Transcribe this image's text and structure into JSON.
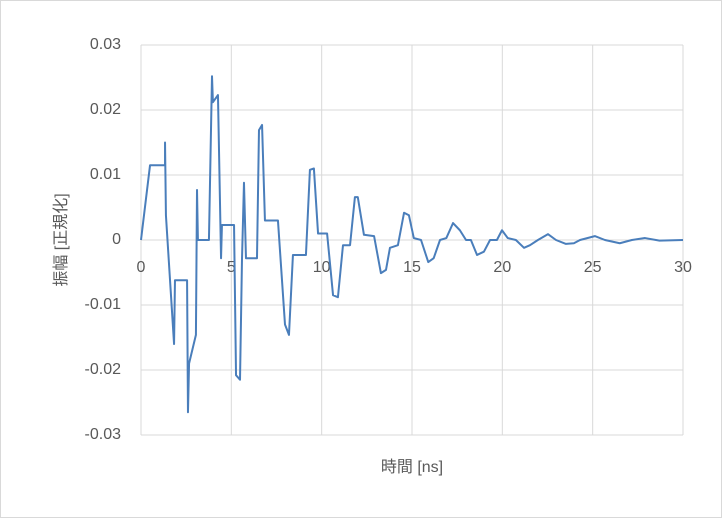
{
  "chart_data": {
    "type": "line",
    "xlabel": "時間 [ns]",
    "ylabel": "振幅 [正規化]",
    "xlim": [
      0,
      30
    ],
    "xticks": [
      0,
      5,
      10,
      15,
      20,
      25,
      30
    ],
    "ylim": [
      -0.03,
      0.03
    ],
    "yticks": [
      -0.03,
      -0.02,
      -0.01,
      0,
      0.01,
      0.02,
      0.03
    ],
    "grid": true,
    "series": [
      {
        "color": "#4a7ebb",
        "x": [
          0,
          0.5,
          1.33,
          1.33,
          1.38,
          1.83,
          1.88,
          2.55,
          2.6,
          2.66,
          3.04,
          3.1,
          3.15,
          3.76,
          3.93,
          3.98,
          4.26,
          4.43,
          4.48,
          5.15,
          5.26,
          5.48,
          5.59,
          5.7,
          5.81,
          6.42,
          6.53,
          6.7,
          6.86,
          7.58,
          7.97,
          8.19,
          8.41,
          9.13,
          9.35,
          9.57,
          9.8,
          10.3,
          10.63,
          10.9,
          11.18,
          11.57,
          11.84,
          12.0,
          12.34,
          12.9,
          13.28,
          13.56,
          13.78,
          14.22,
          14.56,
          14.83,
          15.1,
          15.5,
          15.9,
          16.2,
          16.55,
          16.9,
          17.27,
          17.65,
          17.99,
          18.26,
          18.6,
          18.98,
          19.32,
          19.7,
          19.98,
          20.3,
          20.75,
          21.2,
          21.53,
          21.97,
          22.53,
          22.97,
          23.52,
          23.96,
          24.3,
          25.12,
          25.68,
          26.5,
          27.17,
          27.9,
          28.7,
          30
        ],
        "values": [
          0,
          0.0115,
          0.0115,
          0.015,
          0.0038,
          -0.016,
          -0.0062,
          -0.0062,
          -0.0265,
          -0.019,
          -0.0146,
          0.0077,
          0,
          0,
          0.0252,
          0.0212,
          0.0223,
          -0.0028,
          0.0023,
          0.0023,
          -0.0208,
          -0.0215,
          -0.003,
          0.0088,
          -0.0028,
          -0.0028,
          0.0169,
          0.0177,
          0.003,
          0.003,
          -0.013,
          -0.0146,
          -0.0023,
          -0.0023,
          0.0108,
          0.011,
          0.001,
          0.001,
          -0.0085,
          -0.0088,
          -0.0008,
          -0.0008,
          0.0066,
          0.0066,
          0.0008,
          0.0006,
          -0.0051,
          -0.0046,
          -0.0012,
          -0.0008,
          0.0042,
          0.0038,
          0.0003,
          0,
          -0.0034,
          -0.0028,
          0,
          0.0003,
          0.0026,
          0.0015,
          0,
          0,
          -0.0023,
          -0.0018,
          0,
          0,
          0.0015,
          0.0003,
          0,
          -0.0012,
          -0.0008,
          0,
          0.0009,
          0,
          -0.0006,
          -0.0005,
          0,
          0.0006,
          0,
          -0.0005,
          0,
          0.0003,
          -0.0001,
          0
        ]
      }
    ]
  }
}
